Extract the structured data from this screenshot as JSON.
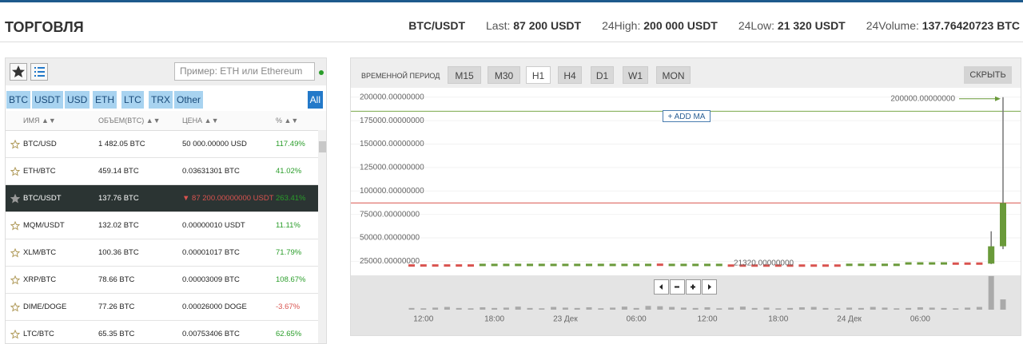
{
  "header": {
    "title": "ТОРГОВЛЯ",
    "pair": "BTC/USDT",
    "stats": [
      {
        "label": "Last:",
        "value": "87 200 USDT"
      },
      {
        "label": "24High:",
        "value": "200 000 USDT"
      },
      {
        "label": "24Low:",
        "value": "21 320 USDT"
      },
      {
        "label": "24Volume:",
        "value": "137.76420723 BTC"
      }
    ]
  },
  "market": {
    "search": "Пример: ETH или Ethereum",
    "tabs": [
      "BTC",
      "USDT",
      "USD",
      "ETH",
      "LTC",
      "TRX",
      "Other"
    ],
    "all": "All",
    "columns": [
      "ИМЯ ▲▼",
      "ОБЪЕМ(BTC) ▲▼",
      "ЦЕНА ▲▼",
      "% ▲▼"
    ],
    "rows": [
      [
        "BTC/USD",
        "1 482.05 BTC",
        "50 000.00000 USD",
        "117.49%"
      ],
      [
        "ETH/BTC",
        "459.14 BTC",
        "0.03631301 BTC",
        "41.02%"
      ],
      [
        "BTC/USDT",
        "137.76 BTC",
        "▼ 87 200.00000000 USDT",
        "263.41%"
      ],
      [
        "MQM/USDT",
        "132.02 BTC",
        "0.00000010 USDT",
        "11.11%"
      ],
      [
        "XLM/BTC",
        "100.36 BTC",
        "0.00001017 BTC",
        "71.79%"
      ],
      [
        "XRP/BTC",
        "78.66 BTC",
        "0.00003009 BTC",
        "108.67%"
      ],
      [
        "DIME/DOGE",
        "77.26 BTC",
        "0.00026000 DOGE",
        "-3.67%"
      ],
      [
        "LTC/BTC",
        "65.35 BTC",
        "0.00753406 BTC",
        "62.65%"
      ]
    ]
  },
  "toolbar": {
    "label": "ВРЕМЕННОЙ ПЕРИОД",
    "periods": [
      "M15",
      "M30",
      "H1",
      "H4",
      "D1",
      "W1",
      "MON"
    ],
    "hide": "СКРЫТЬ",
    "add_ma": "+ ADD MA"
  },
  "chart_data": {
    "type": "candlestick",
    "categories": [
      null,
      "12:00",
      null,
      null,
      null,
      null,
      null,
      "18:00",
      null,
      null,
      null,
      null,
      null,
      "23 Дек",
      null,
      null,
      null,
      null,
      null,
      "06:00",
      null,
      null,
      null,
      null,
      null,
      "12:00",
      null,
      null,
      null,
      null,
      null,
      "18:00",
      null,
      null,
      null,
      null,
      null,
      "24 Дек",
      null,
      null,
      null,
      null,
      null,
      "06:00",
      null,
      null,
      null,
      null,
      null,
      null,
      null
    ],
    "candles": [
      [
        21800,
        22000,
        21200,
        21400
      ],
      [
        21800,
        22000,
        21200,
        21400
      ],
      [
        21800,
        22000,
        21200,
        21400
      ],
      [
        21800,
        22000,
        21200,
        21400
      ],
      [
        21800,
        22000,
        21200,
        21400
      ],
      [
        21800,
        22000,
        21200,
        21400
      ],
      [
        21900,
        22600,
        21800,
        22400
      ],
      [
        21900,
        22600,
        21800,
        22400
      ],
      [
        21900,
        22600,
        21800,
        22400
      ],
      [
        21900,
        22600,
        21800,
        22400
      ],
      [
        21900,
        22600,
        21800,
        22400
      ],
      [
        21900,
        22600,
        21800,
        22400
      ],
      [
        21900,
        22600,
        21800,
        22400
      ],
      [
        21900,
        22600,
        21800,
        22400
      ],
      [
        21900,
        22600,
        21800,
        22400
      ],
      [
        21900,
        22600,
        21800,
        22400
      ],
      [
        21900,
        22600,
        21800,
        22400
      ],
      [
        21900,
        22600,
        21800,
        22400
      ],
      [
        21900,
        22600,
        21800,
        22400
      ],
      [
        21900,
        22600,
        21800,
        22400
      ],
      [
        21900,
        22600,
        21800,
        22400
      ],
      [
        22600,
        22800,
        22100,
        22200
      ],
      [
        21900,
        22600,
        21800,
        22400
      ],
      [
        21900,
        22600,
        21800,
        22400
      ],
      [
        21900,
        22600,
        21800,
        22400
      ],
      [
        21900,
        22600,
        21800,
        22400
      ],
      [
        21900,
        22600,
        21800,
        22400
      ],
      [
        21700,
        21900,
        21320,
        21400
      ],
      [
        21700,
        21900,
        21320,
        21400
      ],
      [
        21700,
        21900,
        21320,
        21400
      ],
      [
        21700,
        21900,
        21320,
        21400
      ],
      [
        21700,
        21900,
        21320,
        21400
      ],
      [
        21700,
        21900,
        21320,
        21400
      ],
      [
        21700,
        21900,
        21320,
        21400
      ],
      [
        21700,
        21900,
        21320,
        21400
      ],
      [
        21700,
        21900,
        21320,
        21400
      ],
      [
        21700,
        21900,
        21320,
        21400
      ],
      [
        22000,
        22700,
        21900,
        22500
      ],
      [
        22000,
        22700,
        21900,
        22500
      ],
      [
        22000,
        22700,
        21900,
        22500
      ],
      [
        22000,
        22700,
        21900,
        22500
      ],
      [
        22000,
        22700,
        21900,
        22500
      ],
      [
        22600,
        24200,
        22500,
        24000
      ],
      [
        22600,
        24200,
        22500,
        24000
      ],
      [
        22600,
        24200,
        22500,
        24000
      ],
      [
        22600,
        24200,
        22500,
        24000
      ],
      [
        23800,
        24000,
        22900,
        23100
      ],
      [
        23800,
        24000,
        22900,
        23100
      ],
      [
        23800,
        24000,
        22900,
        23100
      ],
      [
        22500,
        57000,
        22000,
        41000
      ],
      [
        41000,
        200000,
        38000,
        87200
      ]
    ],
    "volume": [
      0.5,
      0.4,
      0.6,
      0.8,
      0.5,
      0.4,
      0.7,
      0.5,
      0.6,
      0.9,
      0.5,
      0.4,
      0.8,
      0.6,
      0.5,
      0.7,
      0.4,
      0.6,
      0.9,
      0.5,
      1.1,
      1.0,
      0.8,
      0.6,
      0.5,
      0.7,
      0.4,
      0.6,
      0.9,
      0.5,
      0.6,
      0.4,
      0.5,
      0.7,
      0.8,
      0.5,
      0.4,
      0.6,
      0.5,
      0.8,
      0.6,
      0.4,
      0.5,
      0.7,
      0.6,
      0.5,
      0.4,
      0.6,
      0.8,
      9.8,
      3.0
    ],
    "ylim": [
      10000,
      210000
    ],
    "yticks": [
      {
        "value": 25000,
        "label": "25000.00000000"
      },
      {
        "value": 50000,
        "label": "50000.00000000"
      },
      {
        "value": 75000,
        "label": "75000.00000000"
      },
      {
        "value": 100000,
        "label": "100000.00000000"
      },
      {
        "value": 125000,
        "label": "125000.00000000"
      },
      {
        "value": 150000,
        "label": "150000.00000000"
      },
      {
        "value": 175000,
        "label": "175000.00000000"
      },
      {
        "value": 200000,
        "label": "200000.00000000"
      }
    ],
    "vlim": [
      0,
      10
    ],
    "up_color": "#6a9a3a",
    "down_color": "#d9534f",
    "levels": [
      {
        "value": 185000,
        "color": "#7aa84a"
      },
      {
        "value": 87200,
        "color": "#d9534f"
      }
    ],
    "annotations": [
      {
        "label": "200000.00000000",
        "value": 200000
      },
      {
        "label": "21320.00000000",
        "value": 21320
      }
    ]
  }
}
